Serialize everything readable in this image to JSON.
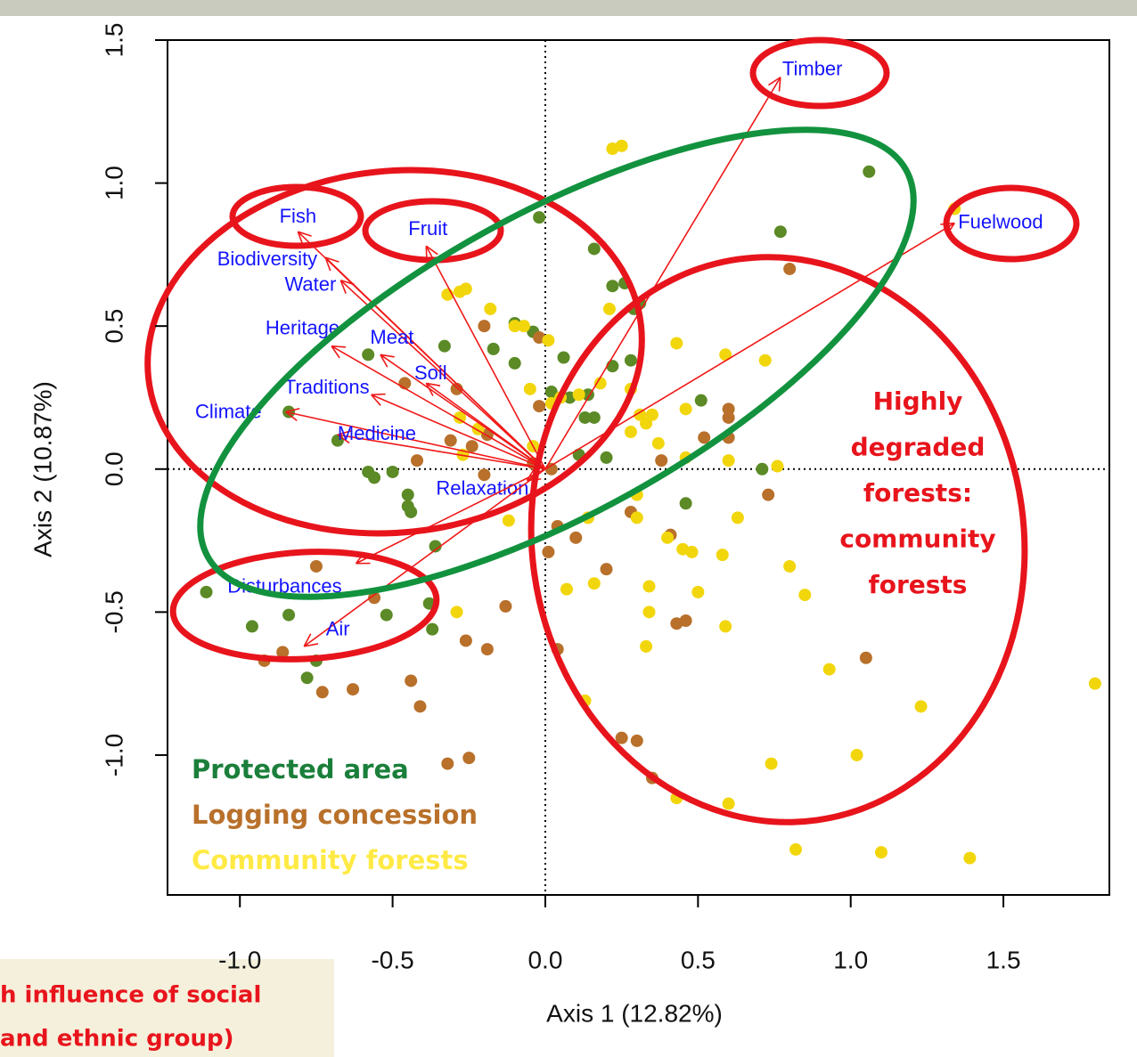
{
  "chart_data": {
    "type": "scatter",
    "xlabel": "Axis 1 (12.82%)",
    "ylabel": "Axis 2 (10.87%)",
    "xlim": [
      -1.237,
      1.847
    ],
    "ylim": [
      -1.489,
      1.5
    ],
    "xticks": [
      {
        "value": -1,
        "label": "-1.0"
      },
      {
        "value": -0.5,
        "label": "-0.5"
      },
      {
        "value": 0,
        "label": "0.0"
      },
      {
        "value": 0.5,
        "label": "0.5"
      },
      {
        "value": 1,
        "label": "1.0"
      },
      {
        "value": 1.5,
        "label": "1.5"
      }
    ],
    "yticks": [
      {
        "value": -1,
        "label": "-1.0"
      },
      {
        "value": -0.5,
        "label": "-0.5"
      },
      {
        "value": 0,
        "label": "0.0"
      },
      {
        "value": 0.5,
        "label": "0.5"
      },
      {
        "value": 1,
        "label": "1.0"
      },
      {
        "value": 1.5,
        "label": "1.5"
      }
    ],
    "series": [
      {
        "name": "Protected area",
        "color": "#5b8a26",
        "label_color": "#1a7f3a",
        "x": [
          1.06,
          0.77,
          -0.02,
          0.16,
          0.22,
          0.26,
          0.31,
          0.29,
          -0.1,
          -0.04,
          0.06,
          -0.1,
          -0.17,
          0.22,
          0.28,
          0.02,
          0.08,
          0.14,
          0.16,
          0.13,
          0.51,
          -0.68,
          -0.58,
          -0.5,
          -0.56,
          -0.45,
          -0.45,
          -0.44,
          -0.36,
          -1.11,
          -0.96,
          -0.84,
          -0.52,
          -0.37,
          -0.78,
          -0.75,
          0.11,
          0.2,
          0.46,
          0.71,
          -0.33,
          -0.58,
          -0.84,
          -0.38
        ],
        "y": [
          1.04,
          0.83,
          0.88,
          0.77,
          0.64,
          0.65,
          0.58,
          0.56,
          0.51,
          0.48,
          0.39,
          0.37,
          0.42,
          0.36,
          0.38,
          0.27,
          0.25,
          0.26,
          0.18,
          0.18,
          0.24,
          0.1,
          -0.01,
          -0.01,
          -0.03,
          -0.09,
          -0.13,
          -0.15,
          -0.27,
          -0.43,
          -0.55,
          -0.51,
          -0.51,
          -0.56,
          -0.73,
          -0.67,
          0.05,
          0.04,
          -0.12,
          0.0,
          0.43,
          0.4,
          0.2,
          -0.47
        ]
      },
      {
        "name": "Logging concession",
        "color": "#b8702a",
        "label_color": "#b8702a",
        "x": [
          0.8,
          -0.2,
          -0.02,
          -0.46,
          -0.29,
          -0.02,
          -0.19,
          -0.31,
          -0.24,
          -0.42,
          -0.2,
          -0.04,
          0.02,
          0.6,
          0.6,
          0.52,
          0.6,
          0.38,
          0.73,
          0.28,
          0.41,
          0.01,
          0.2,
          -0.75,
          -0.56,
          -0.13,
          -0.26,
          -0.19,
          -0.44,
          -0.41,
          -0.73,
          -0.63,
          -0.92,
          -0.86,
          0.43,
          0.46,
          0.04,
          1.05,
          0.25,
          0.3,
          0.35,
          -0.32,
          -0.25,
          0.1,
          0.04
        ],
        "y": [
          0.7,
          0.5,
          0.46,
          0.3,
          0.28,
          0.22,
          0.12,
          0.1,
          0.08,
          0.03,
          -0.02,
          0.02,
          0.0,
          0.21,
          0.18,
          0.11,
          0.11,
          0.03,
          -0.09,
          -0.15,
          -0.23,
          -0.29,
          -0.35,
          -0.34,
          -0.45,
          -0.48,
          -0.6,
          -0.63,
          -0.74,
          -0.83,
          -0.78,
          -0.77,
          -0.67,
          -0.64,
          -0.54,
          -0.53,
          -0.63,
          -0.66,
          -0.94,
          -0.95,
          -1.08,
          -1.03,
          -1.01,
          -0.24,
          -0.2
        ]
      },
      {
        "name": "Community forests",
        "color": "#f2d60c",
        "label_color": "#ffea45",
        "x": [
          0.22,
          0.25,
          1.34,
          -0.32,
          -0.28,
          -0.26,
          -0.18,
          -0.1,
          -0.07,
          0.01,
          0.21,
          0.43,
          0.59,
          0.72,
          -0.05,
          0.02,
          0.05,
          0.18,
          0.28,
          0.11,
          0.31,
          0.35,
          0.33,
          0.28,
          0.46,
          0.37,
          0.46,
          0.6,
          0.76,
          -0.28,
          -0.27,
          -0.12,
          0.14,
          0.3,
          0.3,
          0.4,
          0.45,
          0.48,
          0.58,
          0.63,
          0.8,
          0.85,
          0.5,
          0.34,
          0.34,
          0.07,
          0.16,
          -0.29,
          0.33,
          0.59,
          0.93,
          1.23,
          1.02,
          0.13,
          0.74,
          0.43,
          0.6,
          0.82,
          1.1,
          1.39,
          1.8,
          -0.22,
          -0.04
        ],
        "y": [
          1.12,
          1.13,
          0.91,
          0.61,
          0.62,
          0.63,
          0.56,
          0.5,
          0.5,
          0.45,
          0.56,
          0.44,
          0.4,
          0.38,
          0.28,
          0.23,
          0.25,
          0.3,
          0.28,
          0.26,
          0.19,
          0.19,
          0.16,
          0.13,
          0.21,
          0.09,
          0.04,
          0.03,
          0.01,
          0.18,
          0.05,
          -0.18,
          -0.17,
          -0.09,
          -0.17,
          -0.24,
          -0.28,
          -0.29,
          -0.3,
          -0.17,
          -0.34,
          -0.44,
          -0.43,
          -0.41,
          -0.5,
          -0.42,
          -0.4,
          -0.5,
          -0.62,
          -0.55,
          -0.7,
          -0.83,
          -1.0,
          -0.81,
          -1.03,
          -1.15,
          -1.17,
          -1.33,
          -1.34,
          -1.36,
          -0.75,
          0.14,
          0.08
        ]
      }
    ],
    "vectors": {
      "color": "#f01818",
      "label_color": "#1414ff",
      "labels": [
        "Timber",
        "Fuelwood",
        "Fish",
        "Fruit",
        "Biodiversity",
        "Water",
        "Heritage",
        "Meat",
        "Soil",
        "Traditions",
        "Climate",
        "Medicine",
        "Relaxation",
        "Disturbances",
        "Air"
      ],
      "x": [
        0.77,
        1.34,
        -0.81,
        -0.39,
        -0.72,
        -0.67,
        -0.7,
        -0.54,
        -0.39,
        -0.57,
        -0.85,
        -0.68,
        -0.06,
        -0.62,
        -0.79
      ],
      "y": [
        1.37,
        0.86,
        0.83,
        0.78,
        0.74,
        0.66,
        0.43,
        0.4,
        0.3,
        0.26,
        0.2,
        0.12,
        -0.04,
        -0.33,
        -0.62
      ]
    },
    "annotation": [
      "Highly",
      "degraded",
      "forests:",
      "community",
      "forests"
    ],
    "note": [
      "h influence of social",
      "and ethnic group)"
    ]
  }
}
